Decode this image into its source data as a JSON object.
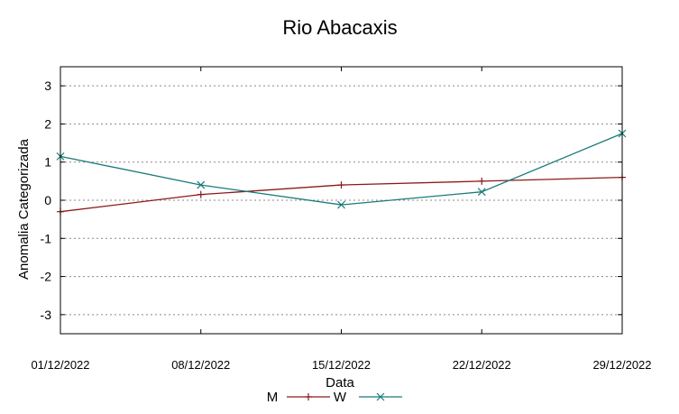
{
  "chart_data": {
    "type": "line",
    "title": "Rio Abacaxis",
    "xlabel": "Data",
    "ylabel": "Anomalia Categorizada",
    "categories": [
      "01/12/2022",
      "08/12/2022",
      "15/12/2022",
      "22/12/2022",
      "29/12/2022"
    ],
    "yticks": [
      "3",
      "2",
      "1",
      "0",
      "-1",
      "-2",
      "-3"
    ],
    "ylim": [
      -3.5,
      3.5
    ],
    "grid": "horizontal dotted",
    "legend_position": "bottom",
    "series": [
      {
        "name": "M",
        "values": [
          -0.3,
          0.15,
          0.4,
          0.5,
          0.6
        ],
        "color": "#8b1a1a",
        "marker": "plus"
      },
      {
        "name": "W",
        "values": [
          1.15,
          0.4,
          -0.12,
          0.22,
          1.75
        ],
        "color": "#1a7a7a",
        "marker": "cross"
      }
    ]
  }
}
